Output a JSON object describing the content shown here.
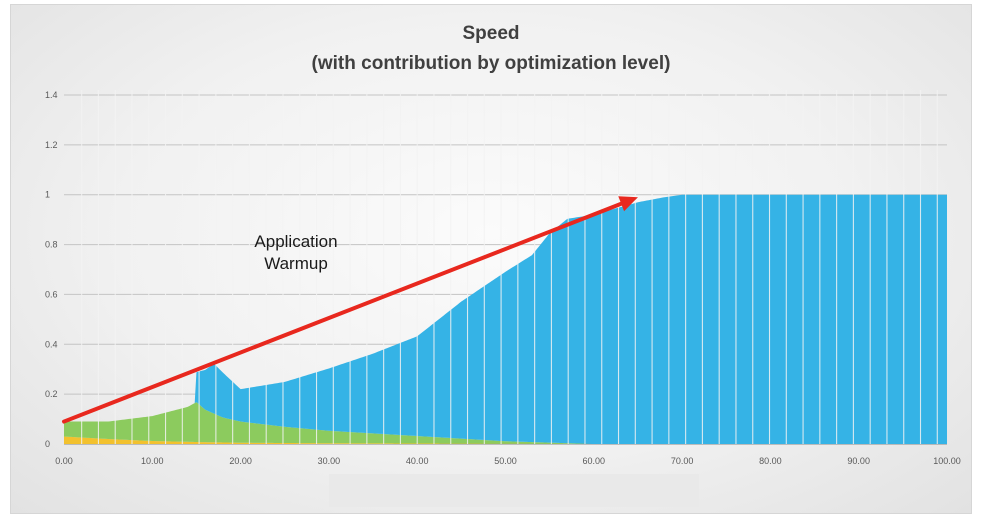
{
  "chart_data": {
    "type": "area",
    "title": "Speed",
    "subtitle": "(with contribution by optimization level)",
    "xlim": [
      0,
      100
    ],
    "ylim": [
      0,
      1.4
    ],
    "x_tick_labels": [
      "0.00",
      "10.00",
      "20.00",
      "30.00",
      "40.00",
      "50.00",
      "60.00",
      "70.00",
      "80.00",
      "90.00",
      "100.00"
    ],
    "y_tick_labels": [
      "0",
      "0.2",
      "0.4",
      "0.6",
      "0.8",
      "1",
      "1.2",
      "1.4"
    ],
    "grid": true,
    "legend": "none",
    "series": [
      {
        "color": "#f2c12e",
        "x": [
          0,
          5,
          10,
          15,
          20,
          30,
          40,
          50,
          60,
          100
        ],
        "y": [
          0.03,
          0.02,
          0.012,
          0.008,
          0.005,
          0.003,
          0.002,
          0.001,
          0,
          0
        ]
      },
      {
        "color": "#8ccb5e",
        "x": [
          0,
          5,
          10,
          14,
          15,
          16,
          18,
          20,
          25,
          30,
          35,
          40,
          45,
          50,
          55,
          58,
          60,
          100
        ],
        "y": [
          0.06,
          0.07,
          0.1,
          0.14,
          0.16,
          0.13,
          0.1,
          0.085,
          0.065,
          0.05,
          0.04,
          0.03,
          0.02,
          0.01,
          0.005,
          0.002,
          0,
          0
        ]
      },
      {
        "color": "#35b3e6",
        "x": [
          15,
          17,
          18,
          20,
          22,
          25,
          30,
          35,
          40,
          45,
          50,
          53,
          55,
          57,
          60,
          65,
          68,
          70,
          100
        ],
        "y": [
          0.12,
          0.2,
          0.18,
          0.13,
          0.15,
          0.18,
          0.25,
          0.32,
          0.4,
          0.55,
          0.68,
          0.75,
          0.84,
          0.9,
          0.92,
          0.97,
          0.99,
          1.0,
          1.0
        ]
      }
    ],
    "annotations": [
      {
        "text_lines": [
          "Application",
          "Warmup"
        ],
        "arrow_from": [
          0,
          0.09
        ],
        "arrow_to": [
          65,
          0.99
        ],
        "color": "#e8281e"
      }
    ]
  }
}
